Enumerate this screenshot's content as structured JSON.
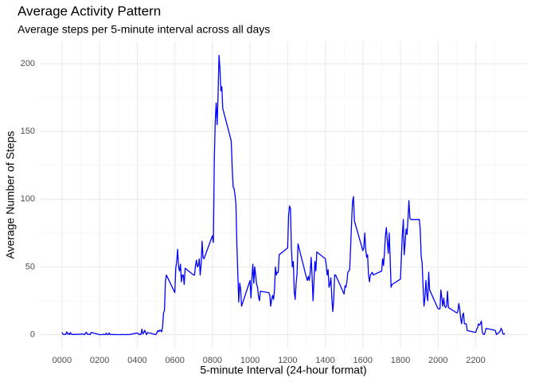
{
  "chart_data": {
    "type": "line",
    "title": "Average Activity Pattern",
    "subtitle": "Average steps per 5-minute interval across all days",
    "x_label": "5-minute Interval (24-hour format)",
    "y_label": "Average Number of Steps",
    "xlim": [
      -118,
      2473
    ],
    "ylim": [
      -10.3,
      216.5
    ],
    "xticks": [
      {
        "value": 0,
        "label": "0000"
      },
      {
        "value": 200,
        "label": "0200"
      },
      {
        "value": 400,
        "label": "0400"
      },
      {
        "value": 600,
        "label": "0600"
      },
      {
        "value": 800,
        "label": "0800"
      },
      {
        "value": 1000,
        "label": "1000"
      },
      {
        "value": 1200,
        "label": "1200"
      },
      {
        "value": 1400,
        "label": "1400"
      },
      {
        "value": 1600,
        "label": "1600"
      },
      {
        "value": 1800,
        "label": "1800"
      },
      {
        "value": 2000,
        "label": "2000"
      },
      {
        "value": 2200,
        "label": "2200"
      }
    ],
    "yticks": [
      0,
      50,
      100,
      150,
      200
    ],
    "xminor": [
      100,
      300,
      500,
      700,
      900,
      1100,
      1300,
      1500,
      1700,
      1900,
      2100,
      2300
    ],
    "yminor": [
      25,
      75,
      125,
      175
    ],
    "grid": true,
    "color": "#0000ff",
    "x": [
      0,
      5,
      10,
      15,
      20,
      25,
      30,
      35,
      40,
      45,
      50,
      55,
      100,
      105,
      110,
      115,
      120,
      125,
      130,
      135,
      140,
      145,
      150,
      155,
      200,
      205,
      210,
      215,
      220,
      225,
      230,
      235,
      240,
      245,
      250,
      255,
      300,
      305,
      310,
      315,
      320,
      325,
      330,
      335,
      340,
      345,
      350,
      355,
      400,
      405,
      410,
      415,
      420,
      425,
      430,
      435,
      440,
      445,
      450,
      455,
      500,
      505,
      510,
      515,
      520,
      525,
      530,
      535,
      540,
      545,
      550,
      555,
      600,
      605,
      610,
      615,
      620,
      625,
      630,
      635,
      640,
      645,
      650,
      655,
      700,
      705,
      710,
      715,
      720,
      725,
      730,
      735,
      740,
      745,
      750,
      755,
      800,
      805,
      810,
      815,
      820,
      825,
      830,
      835,
      840,
      845,
      850,
      855,
      900,
      905,
      910,
      915,
      920,
      925,
      930,
      935,
      940,
      945,
      950,
      955,
      1000,
      1005,
      1010,
      1015,
      1020,
      1025,
      1030,
      1035,
      1040,
      1045,
      1050,
      1055,
      1100,
      1105,
      1110,
      1115,
      1120,
      1125,
      1130,
      1135,
      1140,
      1145,
      1150,
      1155,
      1200,
      1205,
      1210,
      1215,
      1220,
      1225,
      1230,
      1235,
      1240,
      1245,
      1250,
      1255,
      1300,
      1305,
      1310,
      1315,
      1320,
      1325,
      1330,
      1335,
      1340,
      1345,
      1350,
      1355,
      1400,
      1405,
      1410,
      1415,
      1420,
      1425,
      1430,
      1435,
      1440,
      1445,
      1450,
      1455,
      1500,
      1505,
      1510,
      1515,
      1520,
      1525,
      1530,
      1535,
      1540,
      1545,
      1550,
      1555,
      1600,
      1605,
      1610,
      1615,
      1620,
      1625,
      1630,
      1635,
      1640,
      1645,
      1650,
      1655,
      1700,
      1705,
      1710,
      1715,
      1720,
      1725,
      1730,
      1735,
      1740,
      1745,
      1750,
      1755,
      1800,
      1805,
      1810,
      1815,
      1820,
      1825,
      1830,
      1835,
      1840,
      1845,
      1850,
      1855,
      1900,
      1905,
      1910,
      1915,
      1920,
      1925,
      1930,
      1935,
      1940,
      1945,
      1950,
      1955,
      2000,
      2005,
      2010,
      2015,
      2020,
      2025,
      2030,
      2035,
      2040,
      2045,
      2050,
      2055,
      2100,
      2105,
      2110,
      2115,
      2120,
      2125,
      2130,
      2135,
      2140,
      2145,
      2150,
      2155,
      2200,
      2205,
      2210,
      2215,
      2220,
      2225,
      2230,
      2235,
      2240,
      2245,
      2250,
      2255,
      2300,
      2305,
      2310,
      2315,
      2320,
      2325,
      2330,
      2335,
      2340,
      2345,
      2350,
      2355
    ],
    "values": [
      1.7,
      0.3,
      0.1,
      0.2,
      0.1,
      2.1,
      0.5,
      0.9,
      0,
      1.5,
      0.3,
      0.1,
      0.3,
      0.7,
      0.2,
      0.3,
      0,
      1.1,
      1.8,
      0.2,
      0.2,
      0.4,
      0,
      1.6,
      0,
      0,
      0,
      0,
      0.3,
      0,
      0,
      1.1,
      0,
      0,
      1.3,
      0.1,
      0,
      0,
      0,
      0,
      0.2,
      0,
      0,
      0,
      0,
      0.2,
      0,
      0,
      1.2,
      0.9,
      0,
      0.3,
      0.1,
      4.1,
      0.5,
      1.3,
      3.2,
      1.6,
      0,
      1.5,
      0,
      1.5,
      3,
      2.2,
      3.3,
      3,
      2.1,
      6,
      16,
      18,
      39,
      44,
      31,
      49,
      54,
      63,
      50,
      47,
      52,
      39,
      44,
      44,
      37,
      49,
      44,
      44,
      51,
      55,
      50,
      51,
      56,
      44,
      52,
      69,
      57,
      56,
      73,
      68,
      129,
      158,
      171,
      155,
      177,
      206.2,
      196,
      180,
      183,
      167,
      143,
      124,
      109,
      108,
      103,
      96,
      66,
      45,
      24,
      38,
      34,
      21,
      40,
      27,
      42,
      52,
      38,
      50,
      44,
      37,
      35,
      28,
      25,
      32,
      31,
      29,
      21,
      26,
      29,
      26,
      33,
      50,
      44,
      46,
      46,
      59,
      64,
      88,
      95,
      93,
      63,
      50,
      54,
      32,
      26,
      38,
      45,
      67,
      42,
      40,
      43,
      40,
      46,
      57,
      43,
      25,
      40,
      54,
      47,
      61,
      56,
      52,
      44,
      48,
      35,
      37,
      42,
      27,
      17,
      26,
      44,
      44,
      30,
      36,
      35,
      39,
      46,
      47,
      48,
      65,
      83,
      98,
      102,
      84,
      62,
      64,
      75,
      63,
      57,
      59,
      44,
      39,
      44,
      45,
      46,
      44,
      47,
      56,
      51,
      61,
      73,
      79,
      69,
      60,
      75,
      57,
      35,
      37,
      41,
      58,
      74,
      85,
      59,
      68,
      78,
      74,
      86,
      99,
      86,
      85,
      85,
      78,
      58,
      53,
      36,
      21,
      27,
      40,
      30,
      25,
      46,
      33,
      19,
      19,
      19,
      33,
      27,
      21,
      27,
      21,
      20,
      21,
      32,
      20,
      16,
      17,
      23,
      19,
      12,
      8,
      14,
      16,
      8,
      8,
      8,
      3,
      1.6,
      4,
      5,
      8,
      7,
      8,
      10,
      2,
      0.3,
      0.1,
      1.6,
      4.6,
      3.3,
      2.8,
      0,
      0.8,
      1,
      1.6,
      2.6,
      4.7,
      3.3,
      0.6,
      0.2,
      1.1
    ]
  }
}
